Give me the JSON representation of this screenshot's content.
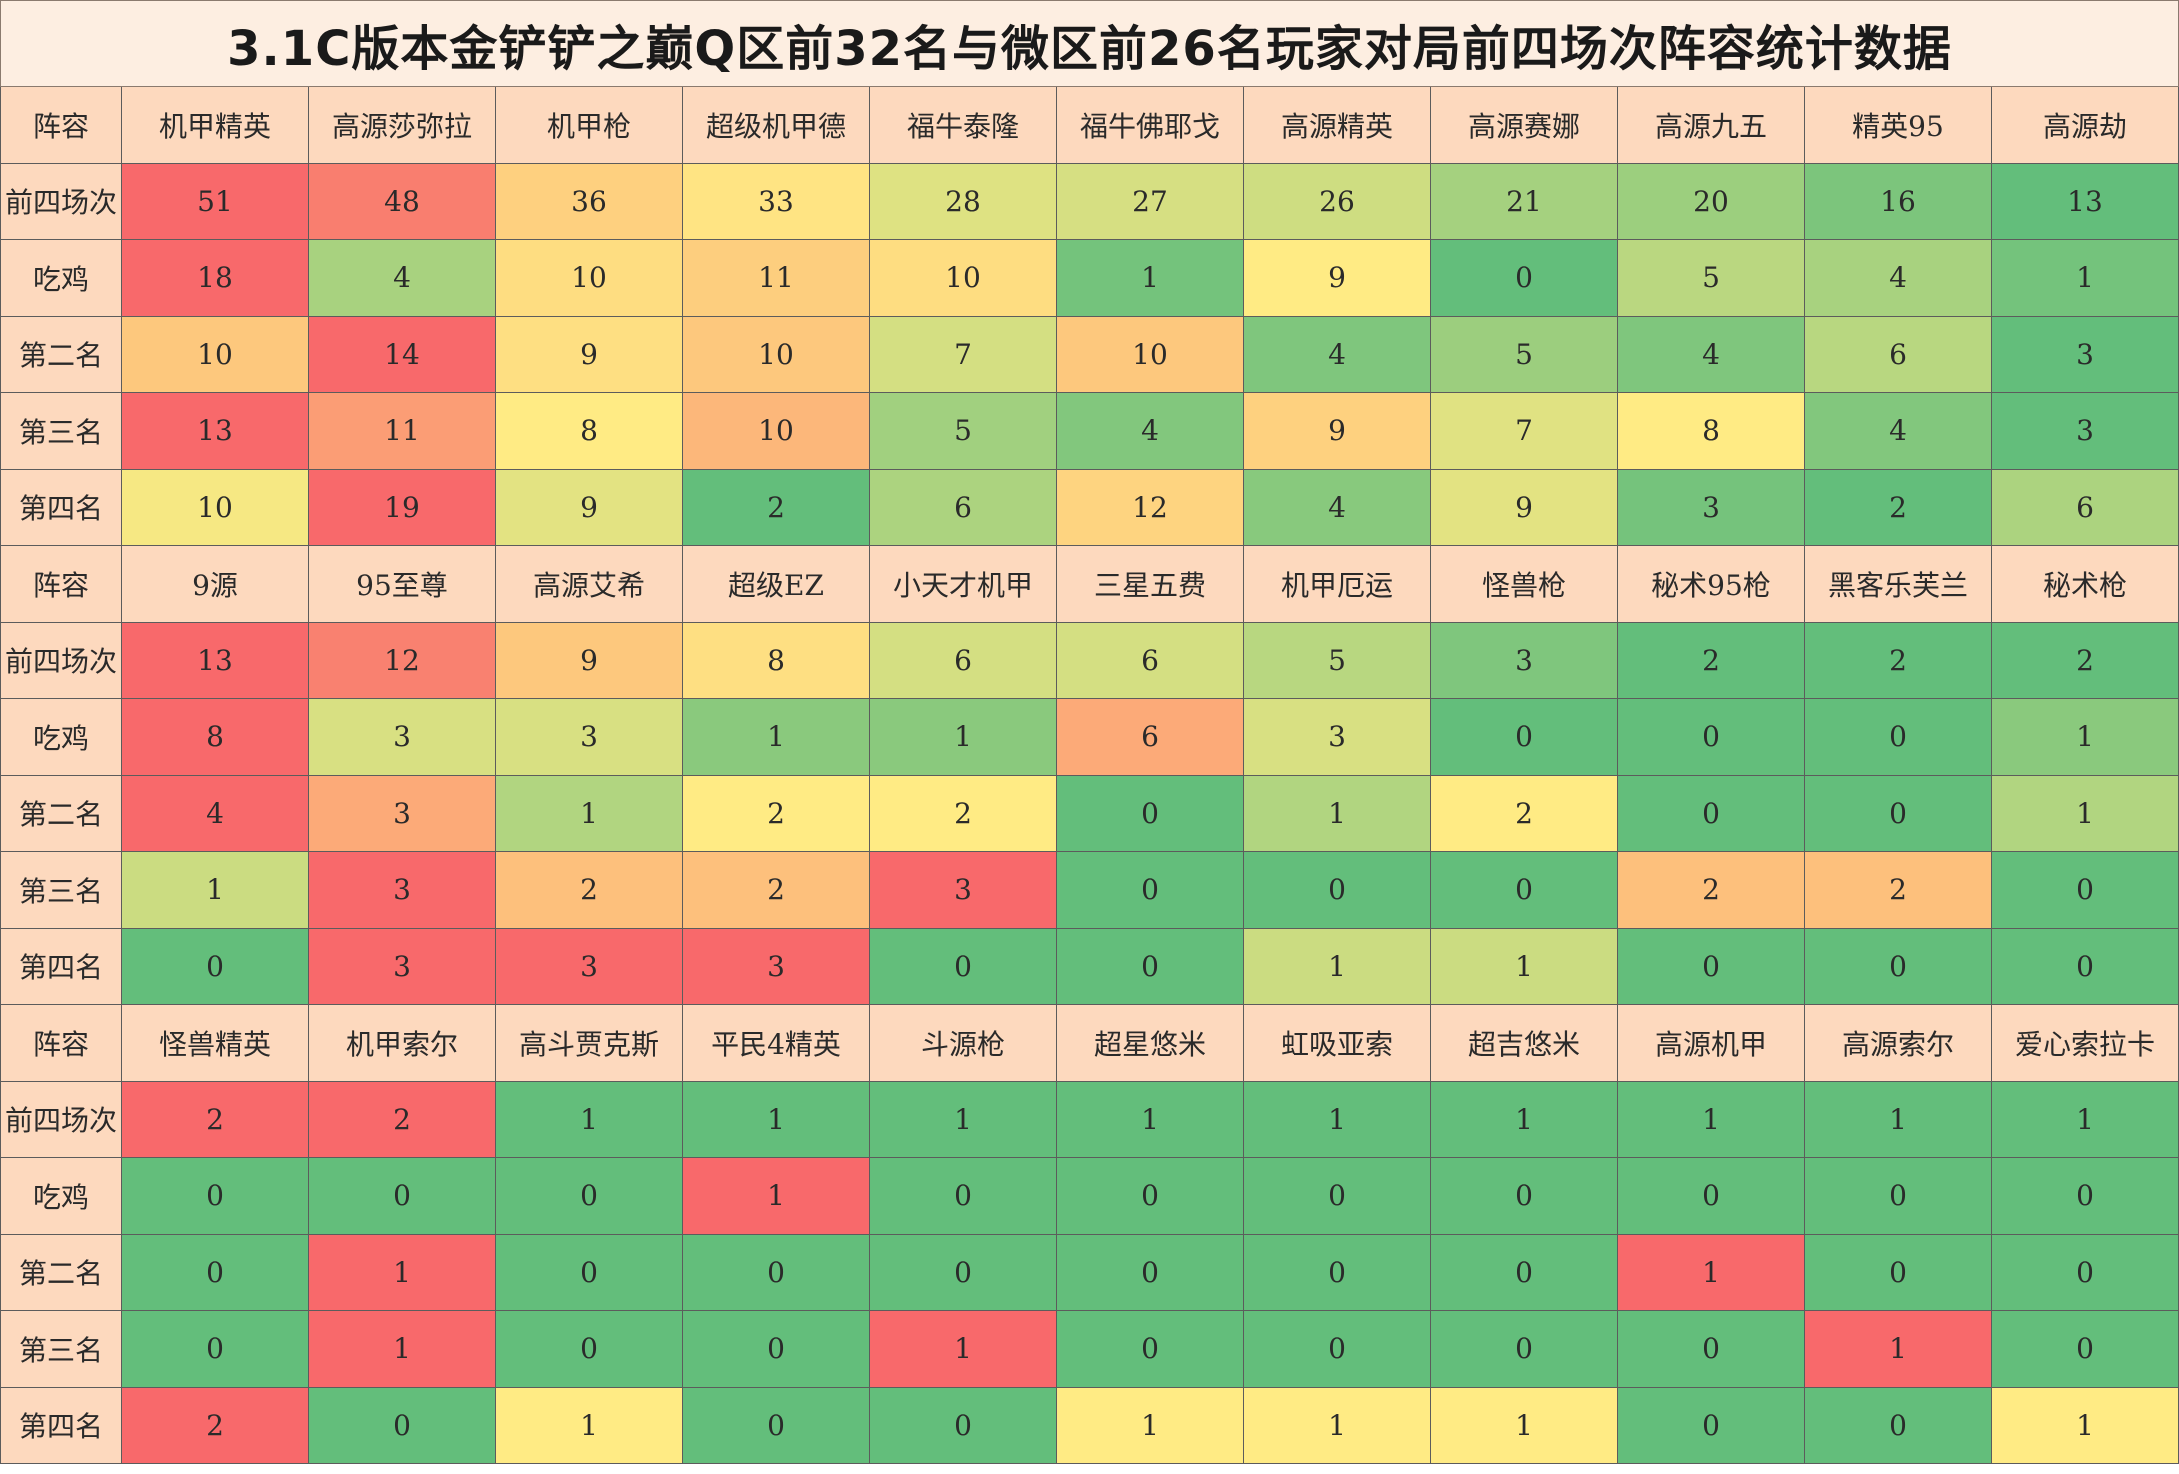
{
  "title": "3.1C版本金铲铲之巅Q区前32名与微区前26名玩家对局前四场次阵容统计数据",
  "colors": {
    "header_bg": "#fdd9be",
    "title_bg": "#fdeee1",
    "scale_low": "#63be7b",
    "scale_mid": "#ffeb84",
    "scale_high": "#f8696b"
  },
  "chart_data": {
    "type": "heatmap",
    "title": "3.1C版本金铲铲之巅Q区前32名与微区前26名玩家对局前四场次阵容统计数据",
    "header_label": "阵容",
    "metrics": [
      "前四场次",
      "吃鸡",
      "第二名",
      "第三名",
      "第四名"
    ],
    "blocks": [
      {
        "comps": [
          "机甲精英",
          "高源莎弥拉",
          "机甲枪",
          "超级机甲德",
          "福牛泰隆",
          "福牛佛耶戈",
          "高源精英",
          "高源赛娜",
          "高源九五",
          "精英95",
          "高源劫"
        ],
        "values": [
          [
            51,
            48,
            36,
            33,
            28,
            27,
            26,
            21,
            20,
            16,
            13
          ],
          [
            18,
            4,
            10,
            11,
            10,
            1,
            9,
            0,
            5,
            4,
            1
          ],
          [
            10,
            14,
            9,
            10,
            7,
            10,
            4,
            5,
            4,
            6,
            3
          ],
          [
            13,
            11,
            8,
            10,
            5,
            4,
            9,
            7,
            8,
            4,
            3
          ],
          [
            10,
            19,
            9,
            2,
            6,
            12,
            4,
            9,
            3,
            2,
            6
          ]
        ]
      },
      {
        "comps": [
          "9源",
          "95至尊",
          "高源艾希",
          "超级EZ",
          "小天才机甲",
          "三星五费",
          "机甲厄运",
          "怪兽枪",
          "秘术95枪",
          "黑客乐芙兰",
          "秘术枪"
        ],
        "values": [
          [
            13,
            12,
            9,
            8,
            6,
            6,
            5,
            3,
            2,
            2,
            2
          ],
          [
            8,
            3,
            3,
            1,
            1,
            6,
            3,
            0,
            0,
            0,
            1
          ],
          [
            4,
            3,
            1,
            2,
            2,
            0,
            1,
            2,
            0,
            0,
            1
          ],
          [
            1,
            3,
            2,
            2,
            3,
            0,
            0,
            0,
            2,
            2,
            0
          ],
          [
            0,
            3,
            3,
            3,
            0,
            0,
            1,
            1,
            0,
            0,
            0
          ]
        ]
      },
      {
        "comps": [
          "怪兽精英",
          "机甲索尔",
          "高斗贾克斯",
          "平民4精英",
          "斗源枪",
          "超星悠米",
          "虹吸亚索",
          "超吉悠米",
          "高源机甲",
          "高源索尔",
          "爱心索拉卡"
        ],
        "values": [
          [
            2,
            2,
            1,
            1,
            1,
            1,
            1,
            1,
            1,
            1,
            1
          ],
          [
            0,
            0,
            0,
            1,
            0,
            0,
            0,
            0,
            0,
            0,
            0
          ],
          [
            0,
            1,
            0,
            0,
            0,
            0,
            0,
            0,
            1,
            0,
            0
          ],
          [
            0,
            1,
            0,
            0,
            1,
            0,
            0,
            0,
            0,
            1,
            0
          ],
          [
            2,
            0,
            1,
            0,
            0,
            1,
            1,
            1,
            0,
            0,
            1
          ]
        ]
      }
    ]
  }
}
